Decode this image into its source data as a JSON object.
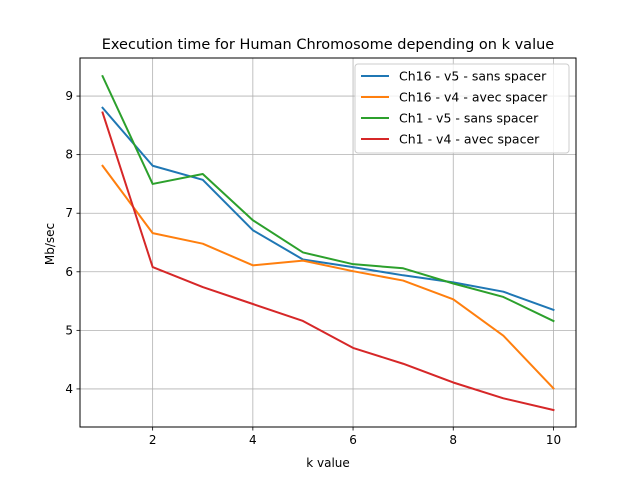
{
  "chart_data": {
    "type": "line",
    "title": "Execution time for Human Chromosome depending on k value",
    "xlabel": "k value",
    "ylabel": "Mb/sec",
    "x": [
      1,
      2,
      3,
      4,
      5,
      6,
      7,
      8,
      9,
      10
    ],
    "xlim": [
      0.55,
      10.45
    ],
    "ylim": [
      3.35,
      9.65
    ],
    "xticks": [
      2,
      4,
      6,
      8,
      10
    ],
    "yticks": [
      4,
      5,
      6,
      7,
      8,
      9
    ],
    "grid": true,
    "legend_position": "top-right",
    "series": [
      {
        "name": "Ch16 - v5 - sans spacer",
        "color": "#1f77b4",
        "values": [
          8.8,
          7.81,
          7.57,
          6.71,
          6.21,
          6.08,
          5.94,
          5.82,
          5.66,
          5.35
        ]
      },
      {
        "name": "Ch16 - v4 - avec spacer",
        "color": "#ff7f0e",
        "values": [
          7.81,
          6.66,
          6.48,
          6.11,
          6.19,
          6.01,
          5.85,
          5.53,
          4.91,
          4.01
        ]
      },
      {
        "name": "Ch1 - v5 - sans spacer",
        "color": "#2ca02c",
        "values": [
          9.34,
          7.5,
          7.67,
          6.88,
          6.33,
          6.13,
          6.06,
          5.8,
          5.57,
          5.16
        ]
      },
      {
        "name": "Ch1 - v4 - avec spacer",
        "color": "#d62728",
        "values": [
          8.72,
          6.08,
          5.74,
          5.45,
          5.16,
          4.7,
          4.43,
          4.11,
          3.84,
          3.64
        ]
      }
    ]
  }
}
